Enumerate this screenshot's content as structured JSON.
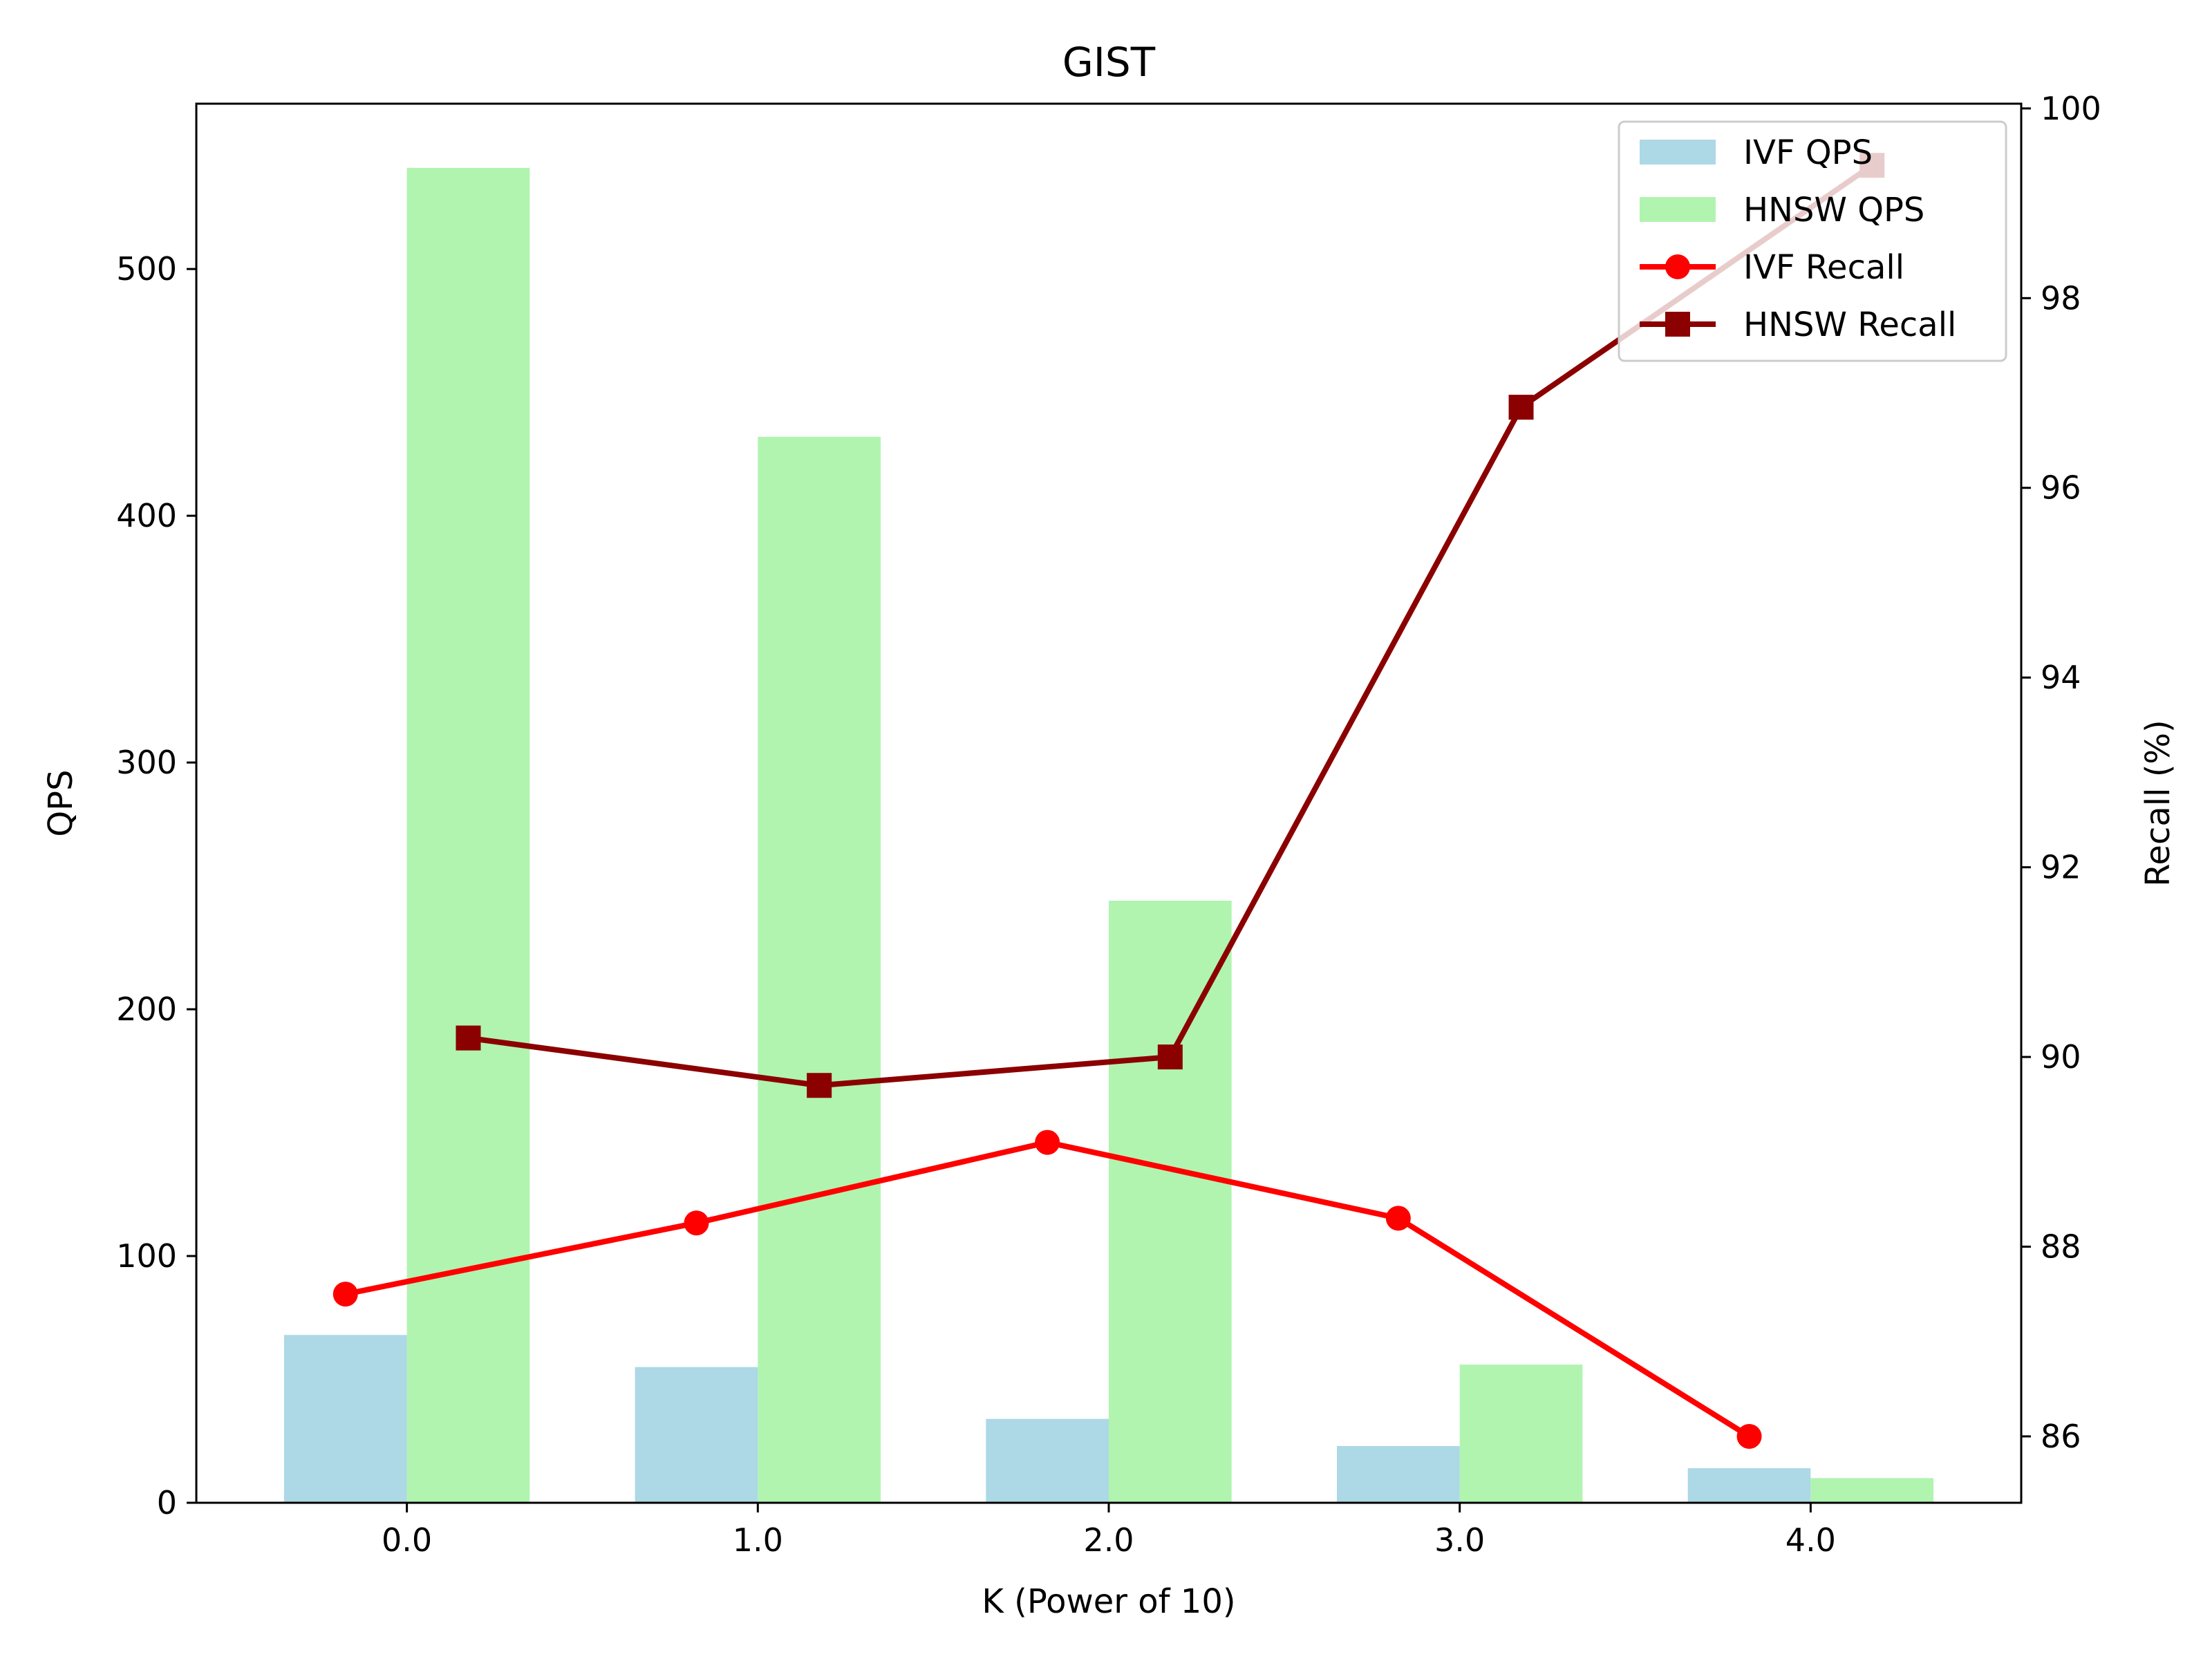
{
  "chart_data": {
    "type": "bar",
    "title": "GIST",
    "xlabel": "K (Power of 10)",
    "ylabel": "QPS",
    "y2label": "Recall (%)",
    "categories": [
      "0.0",
      "1.0",
      "2.0",
      "3.0",
      "4.0"
    ],
    "x": [
      0,
      1,
      2,
      3,
      4
    ],
    "xlim": [
      -0.6,
      4.6
    ],
    "ylim": [
      0,
      567
    ],
    "y2lim": [
      85.3,
      100.05
    ],
    "yticks": [
      0,
      100,
      200,
      300,
      400,
      500
    ],
    "y2ticks": [
      86,
      88,
      90,
      92,
      94,
      96,
      98,
      100
    ],
    "grid": false,
    "legend_position": "top-right",
    "series": [
      {
        "name": "IVF QPS",
        "kind": "bar",
        "axis": "left",
        "color": "#add8e6",
        "values": [
          68,
          55,
          34,
          23,
          14
        ]
      },
      {
        "name": "HNSW QPS",
        "kind": "bar",
        "axis": "left",
        "color": "#b0f4b0",
        "values": [
          541,
          432,
          244,
          56,
          10
        ]
      },
      {
        "name": "IVF Recall",
        "kind": "line",
        "axis": "right",
        "marker": "circle",
        "color": "#ff0000",
        "x": [
          -0.175,
          0.825,
          1.825,
          2.825,
          3.825
        ],
        "values": [
          87.5,
          88.25,
          89.1,
          88.3,
          86.0
        ]
      },
      {
        "name": "HNSW Recall",
        "kind": "line",
        "axis": "right",
        "marker": "square",
        "color": "#8b0000",
        "x": [
          0.175,
          1.175,
          2.175,
          3.175,
          4.175
        ],
        "values": [
          90.2,
          89.7,
          90.0,
          96.85,
          99.4
        ]
      }
    ]
  }
}
